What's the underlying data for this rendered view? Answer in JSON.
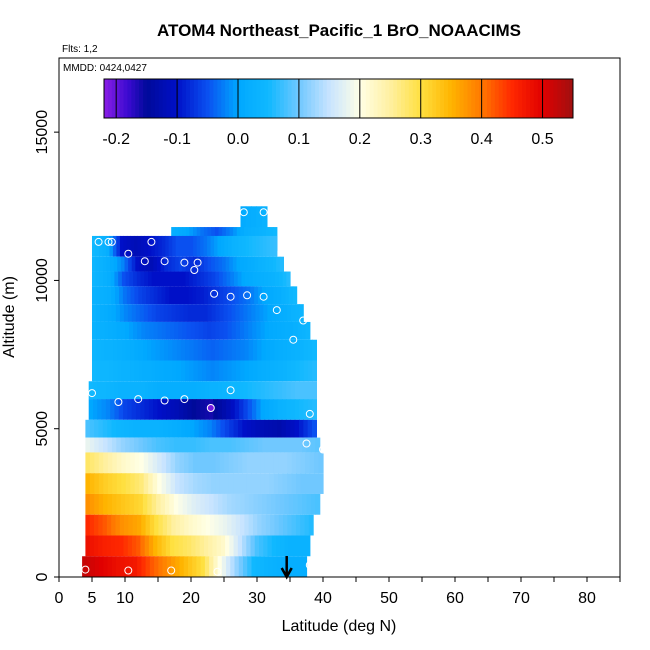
{
  "chart_data": {
    "type": "heatmap",
    "title": "ATOM4 Northeast_Pacific_1 BrO_NOAACIMS",
    "flights_label": "Flts: 1,2",
    "dates_label": "MMDD: 0424,0427",
    "xlabel": "Latitude (deg N)",
    "ylabel": "Altitude (m)",
    "xlim": [
      0,
      85
    ],
    "ylim": [
      0,
      17500
    ],
    "x_ticks": [
      0,
      5,
      10,
      20,
      30,
      40,
      50,
      60,
      70,
      80
    ],
    "y_ticks": [
      0,
      5000,
      10000,
      15000
    ],
    "colorbar": {
      "min": -0.22,
      "max": 0.55,
      "ticks": [
        -0.2,
        -0.1,
        0.0,
        0.1,
        0.2,
        0.3,
        0.4,
        0.5
      ],
      "tick_labels": [
        "-0.2",
        "-0.1",
        "0.0",
        "0.1",
        "0.2",
        "0.3",
        "0.4",
        "0.5"
      ]
    },
    "arrow_latitude": 34.5,
    "rows": [
      {
        "alt0": 11500,
        "alt1": 12500,
        "x0": 27.5,
        "x1": 31.5,
        "values": [
          0.01,
          0.03
        ]
      },
      {
        "alt0": 11000,
        "alt1": 11800,
        "x0": 17,
        "x1": 33,
        "values": [
          0.02,
          0.0,
          -0.03,
          -0.05,
          -0.02,
          0.02,
          0.03,
          0.05
        ]
      },
      {
        "alt0": 10800,
        "alt1": 11500,
        "x0": 5,
        "x1": 33,
        "values": [
          0.05,
          0.02,
          -0.1,
          -0.12,
          -0.1,
          -0.08,
          -0.05,
          -0.05,
          -0.03,
          0.0,
          0.03,
          0.05,
          0.06,
          0.07
        ]
      },
      {
        "alt0": 10300,
        "alt1": 10800,
        "x0": 5,
        "x1": 34,
        "values": [
          0.04,
          0.02,
          -0.02,
          -0.1,
          -0.12,
          -0.08,
          -0.06,
          -0.08,
          -0.05,
          -0.03,
          0.0,
          0.02,
          0.04,
          0.06
        ]
      },
      {
        "alt0": 9800,
        "alt1": 10300,
        "x0": 5,
        "x1": 35,
        "values": [
          0.04,
          0.02,
          -0.05,
          -0.08,
          -0.1,
          -0.1,
          -0.1,
          -0.08,
          -0.06,
          -0.03,
          0.0,
          0.02,
          0.03,
          0.06
        ]
      },
      {
        "alt0": 9200,
        "alt1": 9800,
        "x0": 5,
        "x1": 36,
        "values": [
          0.03,
          0.02,
          -0.03,
          -0.06,
          -0.08,
          -0.1,
          -0.1,
          -0.09,
          -0.07,
          -0.05,
          -0.03,
          0.0,
          0.02,
          0.05
        ]
      },
      {
        "alt0": 8600,
        "alt1": 9200,
        "x0": 5,
        "x1": 37,
        "values": [
          0.03,
          0.01,
          -0.02,
          -0.04,
          -0.06,
          -0.07,
          -0.08,
          -0.08,
          -0.06,
          -0.04,
          -0.02,
          0.0,
          0.02,
          0.04
        ]
      },
      {
        "alt0": 8000,
        "alt1": 8600,
        "x0": 5,
        "x1": 38,
        "values": [
          0.03,
          0.02,
          0.0,
          -0.02,
          -0.03,
          -0.04,
          -0.05,
          -0.06,
          -0.05,
          -0.03,
          -0.01,
          0.01,
          0.02,
          0.04
        ]
      },
      {
        "alt0": 7300,
        "alt1": 8000,
        "x0": 5,
        "x1": 39,
        "values": [
          0.04,
          0.03,
          0.02,
          0.0,
          -0.01,
          -0.02,
          -0.03,
          -0.04,
          -0.03,
          -0.02,
          0.0,
          0.02,
          0.03,
          0.05
        ]
      },
      {
        "alt0": 6600,
        "alt1": 7300,
        "x0": 5,
        "x1": 39,
        "values": [
          0.05,
          0.04,
          0.03,
          0.02,
          0.01,
          0.0,
          -0.01,
          -0.02,
          -0.01,
          0.0,
          0.02,
          0.03,
          0.05,
          0.06
        ]
      },
      {
        "alt0": 6000,
        "alt1": 6600,
        "x0": 4.5,
        "x1": 39,
        "values": [
          0.05,
          0.04,
          0.03,
          0.03,
          0.02,
          0.02,
          0.02,
          0.03,
          0.04,
          0.05,
          0.06,
          0.07,
          0.08,
          0.08
        ]
      },
      {
        "alt0": 5300,
        "alt1": 6000,
        "x0": 4.5,
        "x1": 39,
        "values": [
          0.0,
          -0.02,
          -0.06,
          -0.08,
          -0.1,
          -0.12,
          -0.15,
          -0.16,
          -0.12,
          -0.06,
          0.0,
          0.03,
          0.05,
          0.06
        ]
      },
      {
        "alt0": 4700,
        "alt1": 5300,
        "x0": 4,
        "x1": 39,
        "values": [
          0.08,
          0.06,
          0.04,
          0.03,
          0.03,
          0.02,
          0.0,
          -0.02,
          -0.06,
          -0.1,
          -0.12,
          -0.13,
          -0.1,
          -0.05
        ]
      },
      {
        "alt0": 4200,
        "alt1": 4700,
        "x0": 4,
        "x1": 39.5,
        "values": [
          0.18,
          0.15,
          0.12,
          0.1,
          0.08,
          0.07,
          0.07,
          0.08,
          0.08,
          0.09,
          0.1,
          0.1,
          0.1,
          0.09
        ]
      },
      {
        "alt0": 3500,
        "alt1": 4200,
        "x0": 4,
        "x1": 40,
        "values": [
          0.28,
          0.25,
          0.22,
          0.2,
          0.16,
          0.12,
          0.1,
          0.1,
          0.11,
          0.12,
          0.12,
          0.12,
          0.11,
          0.1
        ]
      },
      {
        "alt0": 2800,
        "alt1": 3500,
        "x0": 4,
        "x1": 40,
        "values": [
          0.35,
          0.32,
          0.3,
          0.27,
          0.2,
          0.15,
          0.13,
          0.12,
          0.12,
          0.12,
          0.12,
          0.11,
          0.1,
          0.1
        ]
      },
      {
        "alt0": 2100,
        "alt1": 2800,
        "x0": 4,
        "x1": 39.5,
        "values": [
          0.38,
          0.35,
          0.33,
          0.31,
          0.25,
          0.2,
          0.17,
          0.15,
          0.13,
          0.12,
          0.11,
          0.1,
          0.09,
          0.08
        ]
      },
      {
        "alt0": 1400,
        "alt1": 2100,
        "x0": 4,
        "x1": 38.5,
        "values": [
          0.45,
          0.42,
          0.38,
          0.36,
          0.3,
          0.25,
          0.22,
          0.2,
          0.18,
          0.15,
          0.12,
          0.1,
          0.08,
          0.06
        ]
      },
      {
        "alt0": 700,
        "alt1": 1400,
        "x0": 4,
        "x1": 38,
        "values": [
          0.48,
          0.46,
          0.45,
          0.42,
          0.35,
          0.3,
          0.28,
          0.25,
          0.22,
          0.15,
          0.08,
          0.05,
          0.03,
          0.03
        ]
      },
      {
        "alt0": 0,
        "alt1": 700,
        "x0": 3.5,
        "x1": 37.5,
        "values": [
          0.52,
          0.5,
          0.48,
          0.47,
          0.42,
          0.38,
          0.34,
          0.3,
          0.2,
          0.12,
          0.05,
          0.03,
          0.02,
          0.02
        ]
      }
    ],
    "points": [
      {
        "lat": 28,
        "alt": 12300
      },
      {
        "lat": 31,
        "alt": 12300
      },
      {
        "lat": 6,
        "alt": 11300
      },
      {
        "lat": 7.5,
        "alt": 11300
      },
      {
        "lat": 8,
        "alt": 11300
      },
      {
        "lat": 14,
        "alt": 11300
      },
      {
        "lat": 10.5,
        "alt": 10900
      },
      {
        "lat": 13,
        "alt": 10650
      },
      {
        "lat": 16,
        "alt": 10650
      },
      {
        "lat": 19,
        "alt": 10600
      },
      {
        "lat": 21,
        "alt": 10600
      },
      {
        "lat": 20.5,
        "alt": 10350
      },
      {
        "lat": 23.5,
        "alt": 9550
      },
      {
        "lat": 26,
        "alt": 9450
      },
      {
        "lat": 28.5,
        "alt": 9500
      },
      {
        "lat": 31,
        "alt": 9450
      },
      {
        "lat": 33,
        "alt": 9000
      },
      {
        "lat": 37,
        "alt": 8650
      },
      {
        "lat": 35.5,
        "alt": 8000
      },
      {
        "lat": 26,
        "alt": 6300
      },
      {
        "lat": 5,
        "alt": 6200
      },
      {
        "lat": 9,
        "alt": 5900
      },
      {
        "lat": 12,
        "alt": 6000
      },
      {
        "lat": 16,
        "alt": 5950
      },
      {
        "lat": 19,
        "alt": 6000
      },
      {
        "lat": 23,
        "alt": 5700,
        "v": -0.21
      },
      {
        "lat": 38,
        "alt": 5500
      },
      {
        "lat": 37.5,
        "alt": 4500
      },
      {
        "lat": 40,
        "alt": 4300
      },
      {
        "lat": 4,
        "alt": 250
      },
      {
        "lat": 10.5,
        "alt": 220
      },
      {
        "lat": 17,
        "alt": 220
      },
      {
        "lat": 24,
        "alt": 180
      },
      {
        "lat": 38,
        "alt": 400
      }
    ]
  }
}
